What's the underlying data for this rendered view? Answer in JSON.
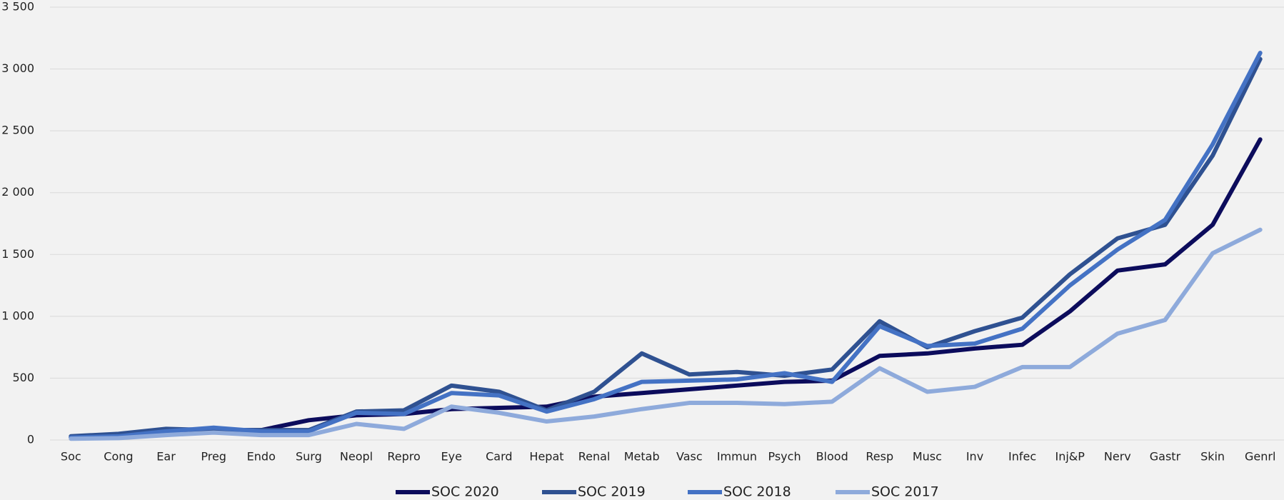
{
  "chart_data": {
    "type": "line",
    "categories": [
      "Soc",
      "Cong",
      "Ear",
      "Preg",
      "Endo",
      "Surg",
      "Neopl",
      "Repro",
      "Eye",
      "Card",
      "Hepat",
      "Renal",
      "Metab",
      "Vasc",
      "Immun",
      "Psych",
      "Blood",
      "Resp",
      "Musc",
      "Inv",
      "Infec",
      "Inj&P",
      "Nerv",
      "Gastr",
      "Skin",
      "Genrl"
    ],
    "series": [
      {
        "name": "SOC 2020",
        "color": "#0c0c5c",
        "values": [
          20,
          30,
          60,
          80,
          80,
          160,
          200,
          210,
          250,
          260,
          270,
          350,
          380,
          410,
          440,
          470,
          480,
          680,
          700,
          740,
          770,
          1040,
          1370,
          1420,
          1740,
          2430
        ]
      },
      {
        "name": "SOC 2019",
        "color": "#2f5191",
        "values": [
          30,
          50,
          90,
          80,
          80,
          80,
          230,
          240,
          440,
          390,
          240,
          390,
          700,
          530,
          550,
          520,
          570,
          960,
          750,
          880,
          990,
          1340,
          1630,
          1740,
          2300,
          3080
        ]
      },
      {
        "name": "SOC 2018",
        "color": "#4472c4",
        "values": [
          20,
          30,
          70,
          100,
          70,
          70,
          220,
          210,
          380,
          360,
          230,
          330,
          470,
          480,
          490,
          540,
          470,
          920,
          760,
          780,
          900,
          1250,
          1540,
          1780,
          2390,
          3130
        ]
      },
      {
        "name": "SOC 2017",
        "color": "#8eaadb",
        "values": [
          10,
          15,
          40,
          60,
          40,
          40,
          130,
          90,
          270,
          220,
          150,
          190,
          250,
          300,
          300,
          290,
          310,
          580,
          390,
          430,
          590,
          590,
          860,
          970,
          1510,
          1700
        ]
      }
    ],
    "ylim": [
      0,
      3500
    ],
    "yticks": [
      0,
      500,
      {
        "value": 1000,
        "label": "1 000"
      },
      {
        "value": 1500,
        "label": "1 500"
      },
      {
        "value": 2000,
        "label": "2 000"
      },
      {
        "value": 2500,
        "label": "2 500"
      },
      {
        "value": 3000,
        "label": "3 000"
      },
      {
        "value": 3500,
        "label": "3 500"
      }
    ],
    "grid": true,
    "legend": "bottom"
  }
}
